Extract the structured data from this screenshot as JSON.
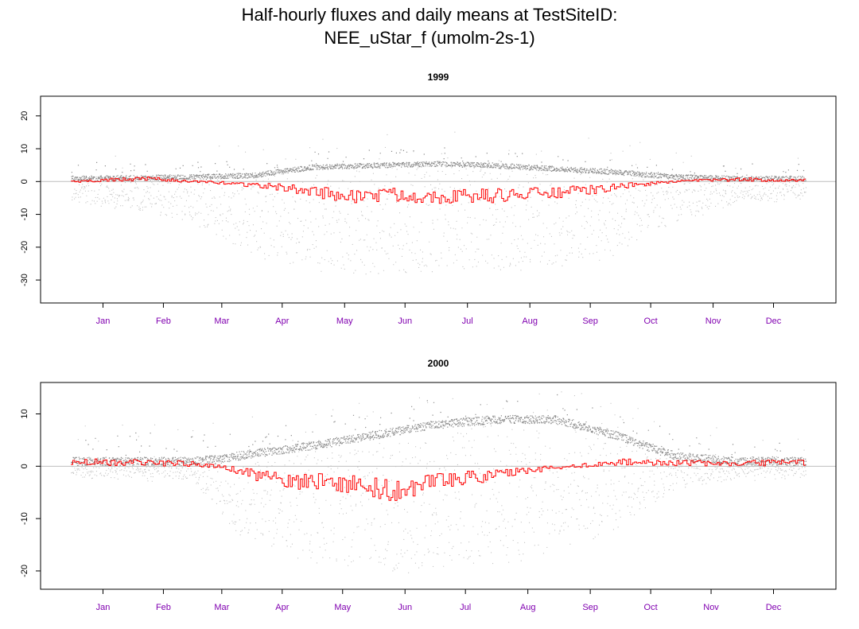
{
  "title": {
    "line1": "Half-hourly fluxes and daily means at TestSiteID:",
    "line2": "NEE_uStar_f (umolm-2s-1)"
  },
  "colors": {
    "daily_mean_line": "#ff0000",
    "half_hourly_points": "#a0a0a0",
    "zero_line": "#bebebe",
    "month_labels": "#8000b0"
  },
  "chart_data": [
    {
      "type": "scatter",
      "title": "1999",
      "xlabel": "",
      "ylabel": "",
      "x_unit": "day of year",
      "xlim": [
        -15,
        380
      ],
      "ylim": [
        -37,
        26
      ],
      "yticks": [
        20,
        10,
        0,
        -10,
        -20,
        -30
      ],
      "month_ticks": [
        {
          "label": "Jan",
          "x": 16
        },
        {
          "label": "Feb",
          "x": 46
        },
        {
          "label": "Mar",
          "x": 75
        },
        {
          "label": "Apr",
          "x": 105
        },
        {
          "label": "May",
          "x": 136
        },
        {
          "label": "Jun",
          "x": 166
        },
        {
          "label": "Jul",
          "x": 197
        },
        {
          "label": "Aug",
          "x": 228
        },
        {
          "label": "Sep",
          "x": 258
        },
        {
          "label": "Oct",
          "x": 288
        },
        {
          "label": "Nov",
          "x": 319
        },
        {
          "label": "Dec",
          "x": 349
        }
      ],
      "reference_line_y": 0,
      "series": [
        {
          "kind": "half-hourly",
          "envelope_doy": [
            0,
            30,
            60,
            90,
            120,
            150,
            180,
            210,
            240,
            270,
            300,
            330,
            365
          ],
          "night_level": [
            1,
            1.2,
            1.5,
            2,
            4.5,
            5,
            5.5,
            5,
            4,
            3,
            1.5,
            1,
            1
          ],
          "day_min": [
            -6,
            -8,
            -12,
            -22,
            -26,
            -28,
            -28,
            -27,
            -26,
            -22,
            -12,
            -6,
            -5
          ]
        },
        {
          "kind": "daily-mean",
          "key_doy": [
            0,
            20,
            40,
            60,
            80,
            100,
            120,
            140,
            160,
            180,
            200,
            220,
            240,
            260,
            280,
            300,
            320,
            340,
            365
          ],
          "key_values": [
            0,
            0.5,
            0.8,
            0,
            -0.5,
            -1.5,
            -3,
            -4.5,
            -4,
            -4.5,
            -4.5,
            -4,
            -3.5,
            -2.5,
            -1,
            0,
            0.5,
            0.6,
            0.3
          ]
        }
      ]
    },
    {
      "type": "scatter",
      "title": "2000",
      "xlabel": "",
      "ylabel": "",
      "x_unit": "day of year",
      "xlim": [
        -15,
        380
      ],
      "ylim": [
        -23.5,
        16
      ],
      "yticks": [
        10,
        0,
        -10,
        -20
      ],
      "month_ticks": [
        {
          "label": "Jan",
          "x": 16
        },
        {
          "label": "Feb",
          "x": 46
        },
        {
          "label": "Mar",
          "x": 75
        },
        {
          "label": "Apr",
          "x": 105
        },
        {
          "label": "May",
          "x": 135
        },
        {
          "label": "Jun",
          "x": 166
        },
        {
          "label": "Jul",
          "x": 196
        },
        {
          "label": "Aug",
          "x": 227
        },
        {
          "label": "Sep",
          "x": 258
        },
        {
          "label": "Oct",
          "x": 288
        },
        {
          "label": "Nov",
          "x": 318
        },
        {
          "label": "Dec",
          "x": 349
        }
      ],
      "reference_line_y": 0,
      "series": [
        {
          "kind": "half-hourly",
          "envelope_doy": [
            0,
            30,
            60,
            75,
            90,
            120,
            150,
            180,
            210,
            240,
            270,
            300,
            330,
            365
          ],
          "night_level": [
            1,
            1,
            1,
            1.5,
            2.5,
            4,
            6,
            8,
            9,
            9,
            6,
            2,
            1,
            1
          ],
          "day_min": [
            -1.5,
            -2,
            -2,
            -10,
            -14,
            -18,
            -20,
            -20,
            -19,
            -16,
            -12,
            -4,
            -2,
            -1.5
          ]
        },
        {
          "kind": "daily-mean",
          "key_doy": [
            0,
            30,
            55,
            65,
            75,
            85,
            100,
            115,
            130,
            145,
            160,
            175,
            190,
            205,
            220,
            235,
            250,
            265,
            280,
            300,
            330,
            365
          ],
          "key_values": [
            0.8,
            0.7,
            0.6,
            0.3,
            -0.2,
            -1,
            -2.5,
            -3,
            -3,
            -3.5,
            -4.5,
            -3.5,
            -2.5,
            -2,
            -1,
            -0.5,
            0,
            0.5,
            1,
            0.6,
            0.5,
            0.8
          ]
        }
      ]
    }
  ]
}
